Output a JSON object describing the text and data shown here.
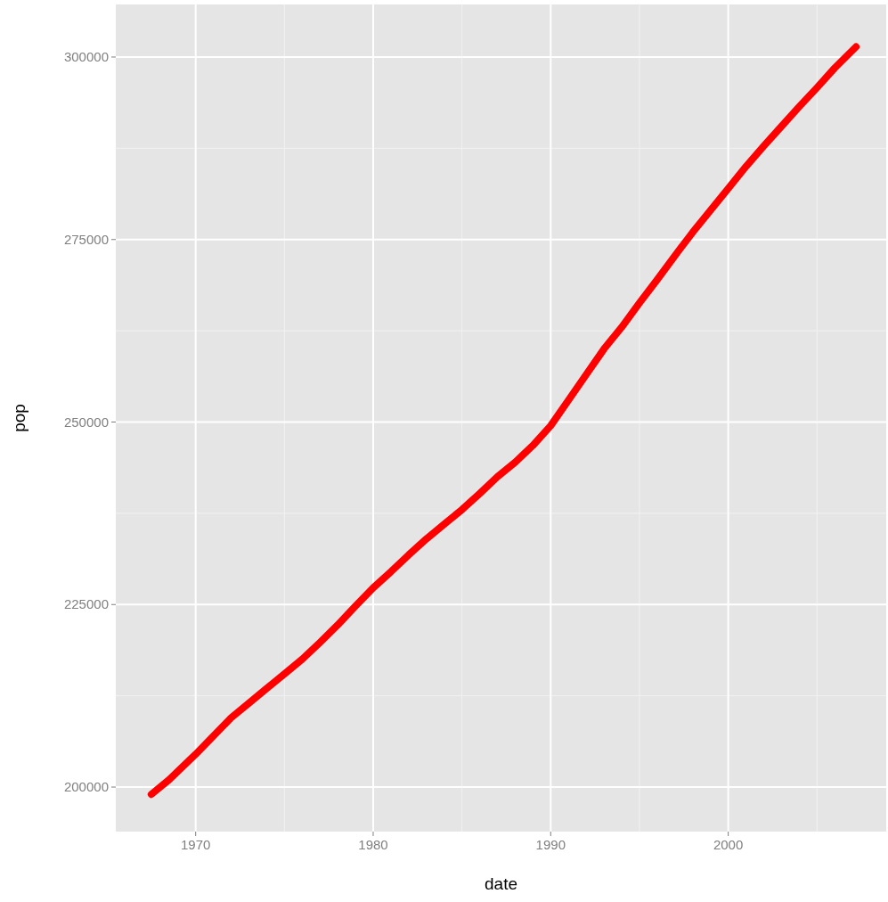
{
  "chart_data": {
    "type": "line",
    "xlabel": "date",
    "ylabel": "pop",
    "x": [
      1967.5,
      1968.5,
      1970,
      1971,
      1972,
      1973,
      1974,
      1975,
      1976,
      1977,
      1978,
      1979,
      1980,
      1981,
      1982,
      1983,
      1984,
      1985,
      1986,
      1987,
      1988,
      1989,
      1990,
      1991,
      1992,
      1993,
      1994,
      1995,
      1996,
      1997,
      1998,
      1999,
      2000,
      2001,
      2002,
      2003,
      2004,
      2005,
      2006,
      2007.2
    ],
    "series": [
      {
        "color": "#ff0000",
        "values": [
          199000,
          201000,
          204500,
          207000,
          209500,
          211500,
          213500,
          215500,
          217500,
          219800,
          222200,
          224800,
          227300,
          229500,
          231800,
          234000,
          236000,
          238000,
          240200,
          242500,
          244500,
          246800,
          249500,
          253000,
          256500,
          260000,
          263000,
          266300,
          269500,
          272800,
          276000,
          279000,
          282000,
          285000,
          287800,
          290500,
          293200,
          295800,
          298500,
          301400
        ]
      }
    ],
    "xlim": [
      1965.5,
      2008.9
    ],
    "ylim": [
      193900,
      307200
    ],
    "xticks": [
      1970,
      1980,
      1990,
      2000
    ],
    "yticks": [
      200000,
      225000,
      250000,
      275000,
      300000
    ],
    "grid": true,
    "line_style": "solid",
    "marker": "none"
  }
}
